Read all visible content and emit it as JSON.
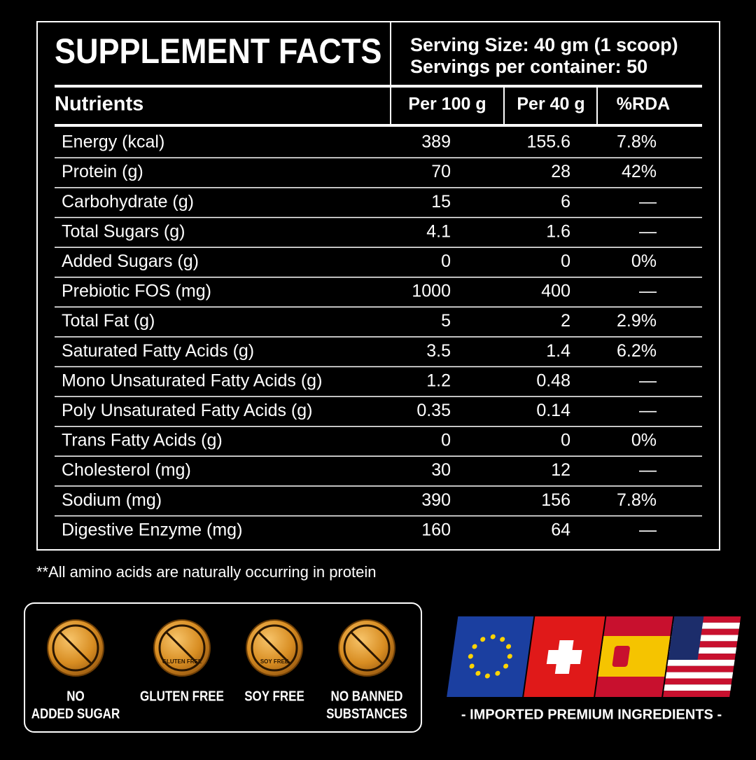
{
  "header": {
    "title": "SUPPLEMENT FACTS",
    "serving_size": "Serving Size: 40 gm (1 scoop)",
    "servings": "Servings per container: 50"
  },
  "table": {
    "columns": [
      "Nutrients",
      "Per 100 g",
      "Per 40 g",
      "%RDA"
    ],
    "rows": [
      [
        "Energy (kcal)",
        "389",
        "155.6",
        "7.8%"
      ],
      [
        "Protein (g)",
        "70",
        "28",
        "42%"
      ],
      [
        "Carbohydrate (g)",
        "15",
        "6",
        "—"
      ],
      [
        "Total Sugars (g)",
        "4.1",
        "1.6",
        "—"
      ],
      [
        "Added Sugars (g)",
        "0",
        "0",
        "0%"
      ],
      [
        "Prebiotic FOS (mg)",
        "1000",
        "400",
        "—"
      ],
      [
        "Total Fat (g)",
        "5",
        "2",
        "2.9%"
      ],
      [
        "Saturated Fatty Acids (g)",
        "3.5",
        "1.4",
        "6.2%"
      ],
      [
        "Mono Unsaturated Fatty Acids (g)",
        "1.2",
        "0.48",
        "—"
      ],
      [
        "Poly Unsaturated Fatty Acids (g)",
        "0.35",
        "0.14",
        "—"
      ],
      [
        "Trans Fatty Acids (g)",
        "0",
        "0",
        "0%"
      ],
      [
        "Cholesterol (mg)",
        "30",
        "12",
        "—"
      ],
      [
        "Sodium (mg)",
        "390",
        "156",
        "7.8%"
      ],
      [
        "Digestive Enzyme (mg)",
        "160",
        "64",
        "—"
      ]
    ]
  },
  "footnote": "**All amino acids are naturally occurring in protein",
  "badges": [
    {
      "label": [
        "NO",
        "ADDED SUGAR"
      ]
    },
    {
      "icon_text": "GLUTEN FREE",
      "label": [
        "GLUTEN FREE"
      ]
    },
    {
      "icon_text": "SOY FREE",
      "label": [
        "SOY FREE"
      ]
    },
    {
      "label": [
        "NO BANNED",
        "SUBSTANCES"
      ]
    }
  ],
  "flags_caption": "- IMPORTED PREMIUM INGREDIENTS -"
}
